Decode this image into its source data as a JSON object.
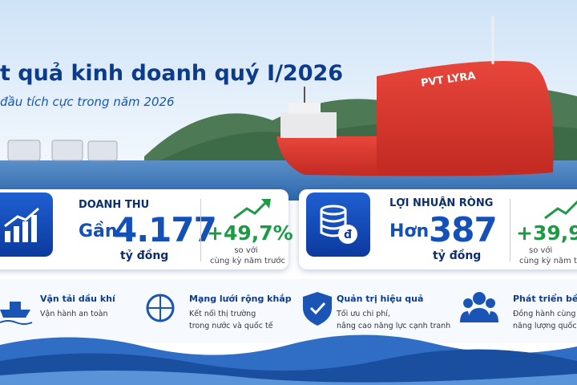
{
  "header": {
    "title": "t quả kinh doanh quý I/2026",
    "subtitle": "đầu tích cực trong năm 2026"
  },
  "ship_name": "PVT LYRA",
  "cards": [
    {
      "label": "DOANH THU",
      "prefix": "Gần",
      "value": "4.177",
      "unit": "tỷ đồng",
      "growth": "+49,7%",
      "note": [
        "so với",
        "cùng kỳ năm trước"
      ]
    },
    {
      "label": "LỢI NHUẬN RÒNG",
      "prefix": "Hơn",
      "value": "387",
      "unit": "tỷ đồng",
      "growth": "+39,9",
      "note": [
        "so với",
        "cùng kỳ năm tr"
      ]
    }
  ],
  "features": [
    {
      "title": "Vận tải dầu khí",
      "desc": [
        "Vận hành an toàn"
      ]
    },
    {
      "title": "Mạng lưới rộng khắp",
      "desc": [
        "Kết nối thị trường",
        "trong nước và quốc tế"
      ]
    },
    {
      "title": "Quản trị hiệu quả",
      "desc": [
        "Tối ưu chi phí,",
        "nâng cao năng lực cạnh tranh"
      ]
    },
    {
      "title": "Phát triển bền v",
      "desc": [
        "Đồng hành cùng",
        "năng lượng quốc giả"
      ]
    }
  ]
}
